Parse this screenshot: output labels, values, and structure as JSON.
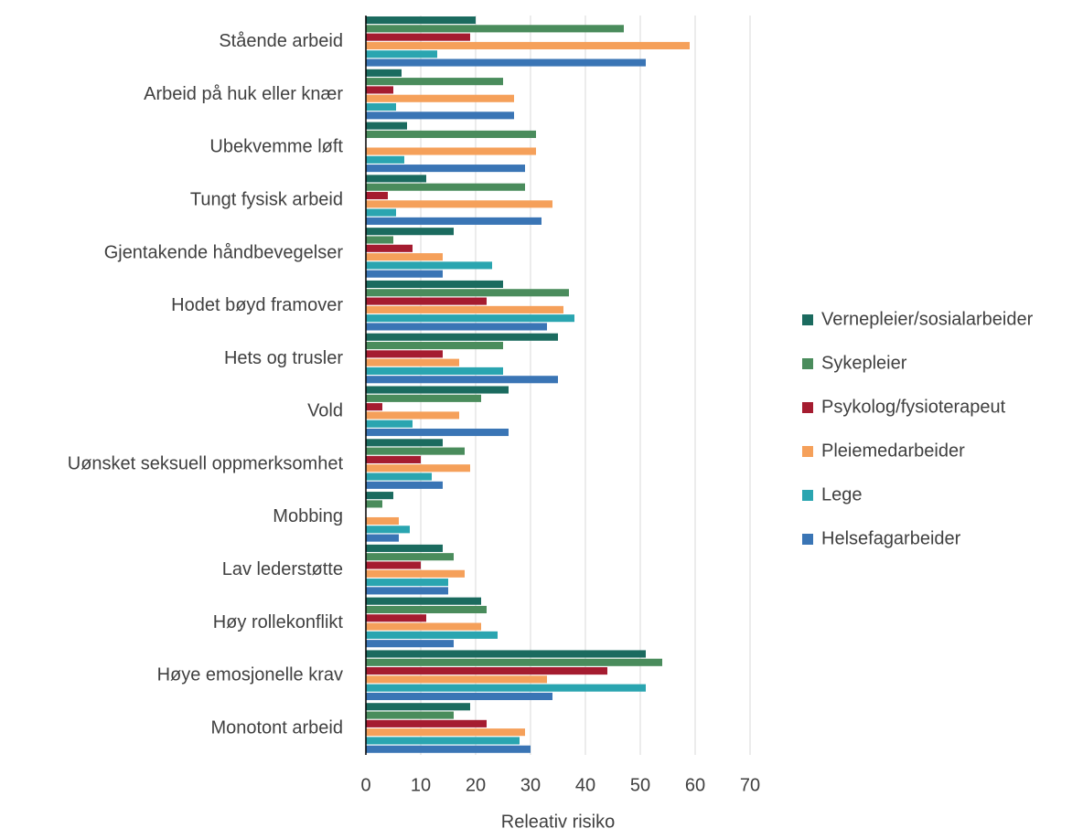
{
  "chart_data": {
    "type": "barh",
    "categories": [
      "Stående arbeid",
      "Arbeid på huk eller knær",
      "Ubekvemme løft",
      "Tungt fysisk arbeid",
      "Gjentakende håndbevegelser",
      "Hodet bøyd framover",
      "Hets og trusler",
      "Vold",
      "Uønsket seksuell oppmerksomhet",
      "Mobbing",
      "Lav lederstøtte",
      "Høy rollekonflikt",
      "Høye emosjonelle krav",
      "Monotont arbeid"
    ],
    "series": [
      {
        "name": "Vernepleier/sosialarbeider",
        "color": "#1b6b5f",
        "values": [
          20,
          6.5,
          7.5,
          11,
          16,
          25,
          35,
          26,
          14,
          5,
          14,
          21,
          51,
          19
        ]
      },
      {
        "name": "Sykepleier",
        "color": "#4a8c5c",
        "values": [
          47,
          25,
          31,
          29,
          5,
          37,
          25,
          21,
          18,
          3,
          16,
          22,
          54,
          16
        ]
      },
      {
        "name": "Psykolog/fysioterapeut",
        "color": "#a51c30",
        "values": [
          19,
          5,
          0,
          4,
          8.5,
          22,
          14,
          3,
          10,
          0,
          10,
          11,
          44,
          22
        ]
      },
      {
        "name": "Pleiemedarbeider",
        "color": "#f5a05a",
        "values": [
          59,
          27,
          31,
          34,
          14,
          36,
          17,
          17,
          19,
          6,
          18,
          21,
          33,
          29
        ]
      },
      {
        "name": "Lege",
        "color": "#2aa5b0",
        "values": [
          13,
          5.5,
          7,
          5.5,
          23,
          38,
          25,
          8.5,
          12,
          8,
          15,
          24,
          51,
          28
        ]
      },
      {
        "name": "Helsefagarbeider",
        "color": "#3a75b5",
        "values": [
          51,
          27,
          29,
          32,
          14,
          33,
          35,
          26,
          14,
          6,
          15,
          16,
          34,
          30
        ]
      }
    ],
    "xlabel": "Releativ risiko",
    "xlim": [
      0,
      70
    ],
    "xticks": [
      0,
      10,
      20,
      30,
      40,
      50,
      60,
      70
    ],
    "grid": true
  }
}
